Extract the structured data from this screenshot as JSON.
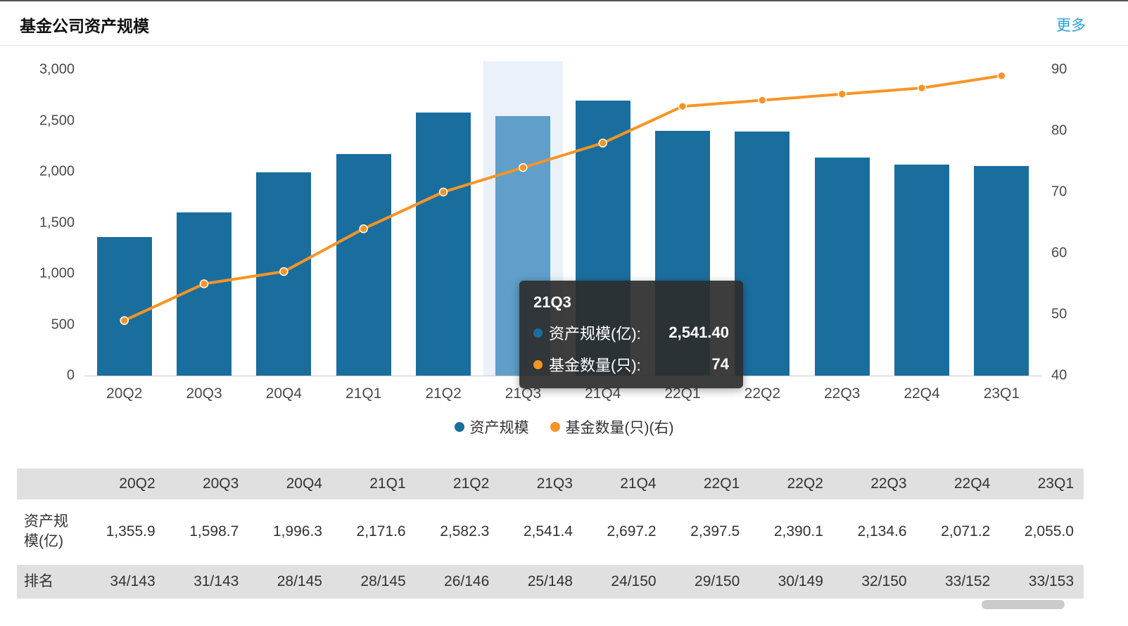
{
  "header": {
    "title": "基金公司资产规模",
    "more_link": "更多"
  },
  "chart_data": {
    "type": "bar+line",
    "title": "基金公司资产规模",
    "categories": [
      "20Q2",
      "20Q3",
      "20Q4",
      "21Q1",
      "21Q2",
      "21Q3",
      "21Q4",
      "22Q1",
      "22Q2",
      "22Q3",
      "22Q4",
      "23Q1"
    ],
    "series": [
      {
        "name": "资产规模",
        "type": "bar",
        "axis": "left",
        "color": "#1a6e9e",
        "values": [
          1355.9,
          1598.7,
          1996.3,
          2171.6,
          2582.3,
          2541.4,
          2697.2,
          2397.5,
          2390.1,
          2134.6,
          2071.2,
          2055.0
        ]
      },
      {
        "name": "基金数量(只)(右)",
        "type": "line",
        "axis": "right",
        "color": "#f89425",
        "values": [
          49,
          55,
          57,
          64,
          70,
          74,
          78,
          84,
          85,
          86,
          87,
          89
        ]
      }
    ],
    "highlight_index": 5,
    "highlight_color": "#5f9fc9",
    "band_color": "#eaf1f9",
    "left_axis": {
      "min": 0,
      "max": 3000,
      "tick_values": [
        0,
        500,
        1000,
        1500,
        2000,
        2500,
        3000
      ],
      "tick_labels": [
        "0",
        "500",
        "1,000",
        "1,500",
        "2,000",
        "2,500",
        "3,000"
      ]
    },
    "right_axis": {
      "min": 40,
      "max": 90,
      "tick_values": [
        40,
        50,
        60,
        70,
        80,
        90
      ],
      "tick_labels": [
        "40",
        "50",
        "60",
        "70",
        "80",
        "90"
      ]
    },
    "grid": false,
    "legend_position": "bottom"
  },
  "tooltip": {
    "title": "21Q3",
    "rows": [
      {
        "label": "资产规模(亿):",
        "value": "2,541.40",
        "color": "#1a6e9e"
      },
      {
        "label": "基金数量(只):",
        "value": "74",
        "color": "#f89425"
      }
    ]
  },
  "legend": [
    {
      "label": "资产规模",
      "color": "#1a6e9e"
    },
    {
      "label": "基金数量(只)(右)",
      "color": "#f89425"
    }
  ],
  "table": {
    "columns": [
      "",
      "20Q2",
      "20Q3",
      "20Q4",
      "21Q1",
      "21Q2",
      "21Q3",
      "21Q4",
      "22Q1",
      "22Q2",
      "22Q3",
      "22Q4",
      "23Q1"
    ],
    "rows": [
      {
        "label": "资产规模(亿)",
        "values": [
          "1,355.9",
          "1,598.7",
          "1,996.3",
          "2,171.6",
          "2,582.3",
          "2,541.4",
          "2,697.2",
          "2,397.5",
          "2,390.1",
          "2,134.6",
          "2,071.2",
          "2,055.0"
        ]
      },
      {
        "label": "排名",
        "values": [
          "34/143",
          "31/143",
          "28/145",
          "28/145",
          "26/146",
          "25/148",
          "24/150",
          "29/150",
          "30/149",
          "32/150",
          "33/152",
          "33/153"
        ]
      }
    ]
  }
}
